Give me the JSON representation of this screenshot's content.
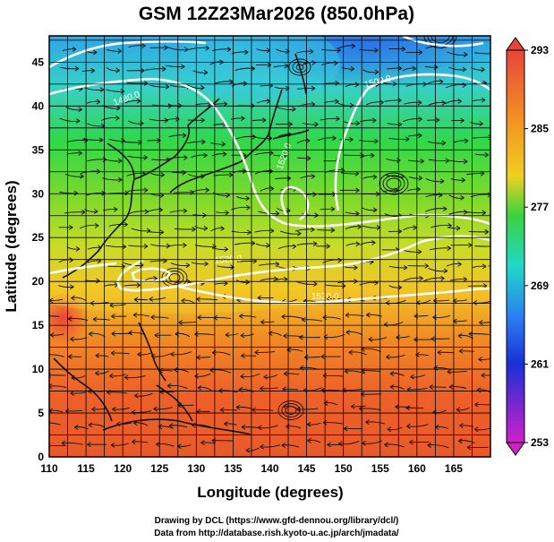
{
  "title": "GSM 12Z23Mar2026 (850.0hPa)",
  "xlabel": "Longitude (degrees)",
  "ylabel": "Latitude  (degrees)",
  "x_ticks": [
    "110",
    "115",
    "120",
    "125",
    "130",
    "135",
    "140",
    "145",
    "150",
    "155",
    "160",
    "165"
  ],
  "y_ticks": [
    "0",
    "5",
    "10",
    "15",
    "20",
    "25",
    "30",
    "35",
    "40",
    "45"
  ],
  "colorbar": {
    "ticks": [
      "293",
      "285",
      "277",
      "269",
      "261",
      "253"
    ],
    "colors": [
      "#e8453a",
      "#f39224",
      "#f0d020",
      "#3cd23c",
      "#20d8c8",
      "#2a7ef0",
      "#1a30d8",
      "#d020c8"
    ]
  },
  "contour_labels": [
    "1480.0",
    "1500.0",
    "1520.0",
    "1520.0",
    "1520.0"
  ],
  "credits": {
    "line1": "Drawing by DCL (https://www.gfd-dennou.org/library/dcl/)",
    "line2": "Data from http://database.rish.kyoto-u.ac.jp/arch/jmadata/"
  }
}
